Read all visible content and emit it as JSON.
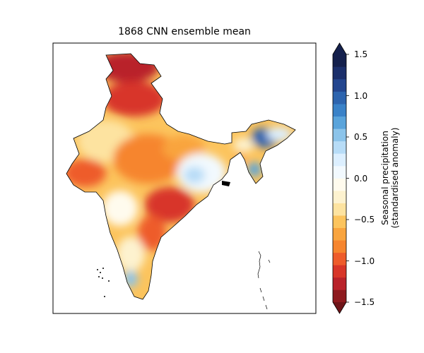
{
  "title": "1868 CNN ensemble mean",
  "colorbar": {
    "label_line1": "Seasonal precipitation",
    "label_line2": "(standardised anomaly)",
    "ticks": [
      "1.5",
      "1.0",
      "0.5",
      "0.0",
      "−0.5",
      "−1.0",
      "−1.5"
    ],
    "range": [
      -1.5,
      1.5
    ],
    "levels": 20,
    "colors": [
      "#8e1a1e",
      "#b9222a",
      "#d83629",
      "#ee5c2b",
      "#f6852e",
      "#f9a43e",
      "#fcc45d",
      "#fde3a0",
      "#fdf2cf",
      "#fffbee",
      "#f2f9fe",
      "#dcefff",
      "#b7dcf7",
      "#8cc4ea",
      "#5aa4db",
      "#3a82c8",
      "#2d64ae",
      "#23468f",
      "#1b2f6b",
      "#14204c"
    ]
  },
  "map": {
    "region": "India",
    "anomaly_blobs": [
      {
        "id": "kashmir",
        "value": -1.2
      },
      {
        "id": "punjab",
        "value": -1.0
      },
      {
        "id": "rajasthan-west",
        "value": -0.6
      },
      {
        "id": "gujarat",
        "value": -0.8
      },
      {
        "id": "central",
        "value": -0.7
      },
      {
        "id": "east-central",
        "value": 0.15
      },
      {
        "id": "northeast",
        "value": 1.0
      },
      {
        "id": "peninsula-east",
        "value": -0.9
      },
      {
        "id": "kerala",
        "value": 0.4
      }
    ]
  }
}
